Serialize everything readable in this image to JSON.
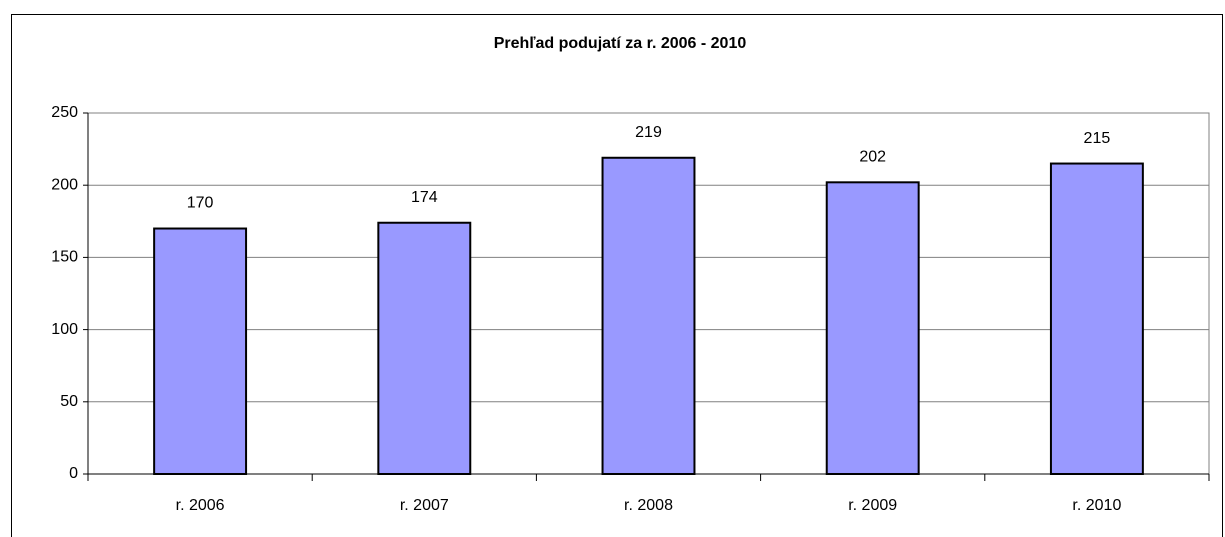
{
  "chart_data": {
    "type": "bar",
    "title": "Prehľad podujatí za r. 2006 - 2010",
    "categories": [
      "r. 2006",
      "r. 2007",
      "r. 2008",
      "r. 2009",
      "r. 2010"
    ],
    "values": [
      170,
      174,
      219,
      202,
      215
    ],
    "color": "#9999ff",
    "ylim": [
      0,
      250
    ],
    "yticks": [
      0,
      50,
      100,
      150,
      200,
      250
    ],
    "grid": true
  }
}
